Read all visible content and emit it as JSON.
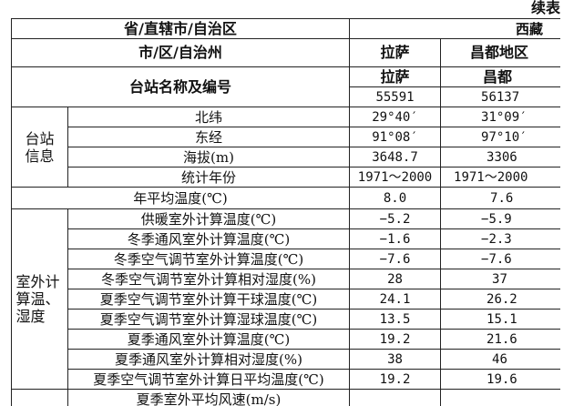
{
  "caption": "续表",
  "header": {
    "province_label": "省/直辖市/自治区",
    "province_value": "西藏",
    "city_label": "市/区/自治州",
    "cities": [
      "拉萨",
      "昌都地区"
    ],
    "station_label": "台站名称及编号",
    "station_names": [
      "拉萨",
      "昌都"
    ],
    "station_ids": [
      "55591",
      "56137"
    ]
  },
  "station_info": {
    "group_label": "台站信息",
    "rows": [
      {
        "label": "北纬",
        "values": [
          "29°40′",
          "31°09′"
        ]
      },
      {
        "label": "东经",
        "values": [
          "91°08′",
          "97°10′"
        ]
      },
      {
        "label": "海拔(m)",
        "values": [
          "3648.7",
          "3306"
        ]
      },
      {
        "label": "统计年份",
        "values": [
          "1971～2000",
          "1971～2000"
        ]
      }
    ]
  },
  "annual_mean": {
    "label": "年平均温度(℃)",
    "values": [
      "8.0",
      "7.6"
    ]
  },
  "outdoor": {
    "group_label": "室外计算温、湿度",
    "rows": [
      {
        "label": "供暖室外计算温度(℃)",
        "values": [
          "−5.2",
          "−5.9"
        ]
      },
      {
        "label": "冬季通风室外计算温度(℃)",
        "values": [
          "−1.6",
          "−2.3"
        ]
      },
      {
        "label": "冬季空气调节室外计算温度(℃)",
        "values": [
          "−7.6",
          "−7.6"
        ]
      },
      {
        "label": "冬季空气调节室外计算相对湿度(%)",
        "values": [
          "28",
          "37"
        ]
      },
      {
        "label": "夏季空气调节室外计算干球温度(℃)",
        "values": [
          "24.1",
          "26.2"
        ]
      },
      {
        "label": "夏季空气调节室外计算湿球温度(℃)",
        "values": [
          "13.5",
          "15.1"
        ]
      },
      {
        "label": "夏季通风室外计算温度(℃)",
        "values": [
          "19.2",
          "21.6"
        ]
      },
      {
        "label": "夏季通风室外计算相对湿度(%)",
        "values": [
          "38",
          "46"
        ]
      },
      {
        "label": "夏季空气调节室外计算日平均温度(℃)",
        "values": [
          "19.2",
          "19.6"
        ]
      }
    ]
  },
  "partial_row": {
    "label": "夏季室外平均风速(m/s)"
  }
}
